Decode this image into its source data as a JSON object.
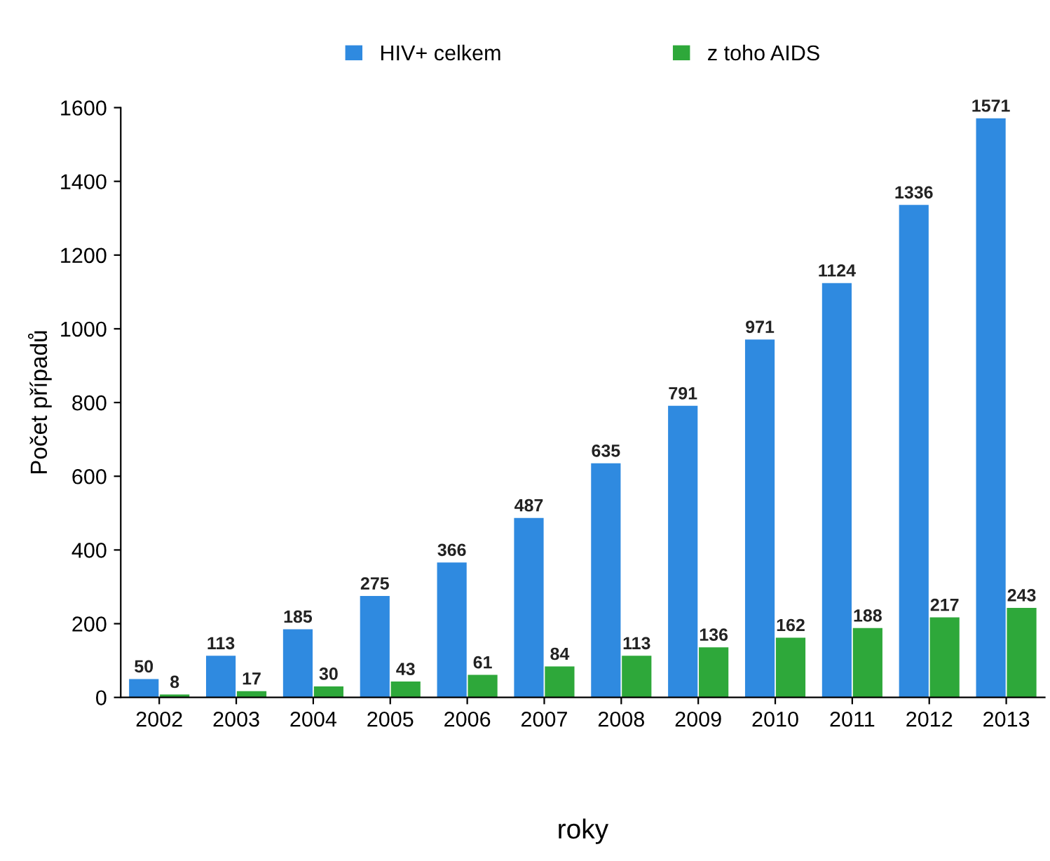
{
  "chart_data": {
    "type": "bar",
    "xlabel": "roky",
    "ylabel": "Počet případů",
    "categories": [
      "2002",
      "2003",
      "2004",
      "2005",
      "2006",
      "2007",
      "2008",
      "2009",
      "2010",
      "2011",
      "2012",
      "2013"
    ],
    "series": [
      {
        "name": "HIV+ celkem",
        "color": "#2f8ae0",
        "values": [
          50,
          113,
          185,
          275,
          366,
          487,
          635,
          791,
          971,
          1124,
          1336,
          1571
        ]
      },
      {
        "name": "z toho AIDS",
        "color": "#2ea83a",
        "values": [
          8,
          17,
          30,
          43,
          61,
          84,
          113,
          136,
          162,
          188,
          217,
          243
        ]
      }
    ],
    "ylim": [
      0,
      1600
    ],
    "yticks": [
      0,
      200,
      400,
      600,
      800,
      1000,
      1200,
      1400,
      1600
    ],
    "data_labels": true,
    "grid": false,
    "legend": "top"
  }
}
